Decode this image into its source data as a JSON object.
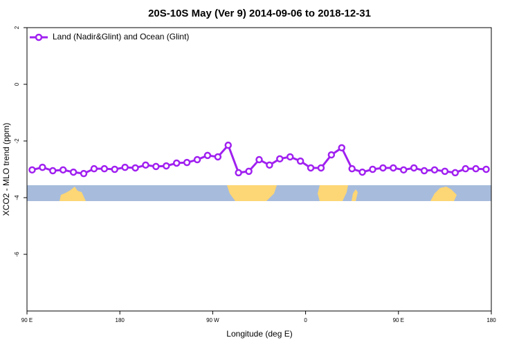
{
  "chart_data": {
    "type": "line",
    "title": "20S-10S May (Ver 9)   2014-09-06 to 2018-12-31",
    "x_label": "Longitude (deg E)",
    "y_label": "XCO2 - MLO trend (ppm)",
    "x": [
      95,
      105,
      115,
      125,
      135,
      145,
      155,
      165,
      175,
      185,
      195,
      205,
      215,
      225,
      235,
      245,
      255,
      265,
      275,
      285,
      295,
      305,
      315,
      325,
      335,
      345,
      355,
      365,
      375,
      385,
      395,
      405,
      415,
      425,
      435,
      445,
      455,
      465,
      475,
      485,
      495,
      505,
      515,
      525,
      535
    ],
    "series": [
      {
        "name": "Land (Nadir&Glint) and Ocean (Glint)",
        "color": "#a020f0",
        "values": [
          -3.02,
          -2.93,
          -3.05,
          -3.02,
          -3.1,
          -3.15,
          -2.98,
          -2.98,
          -3.0,
          -2.93,
          -2.95,
          -2.85,
          -2.9,
          -2.88,
          -2.78,
          -2.76,
          -2.66,
          -2.51,
          -2.56,
          -2.15,
          -3.12,
          -3.07,
          -2.66,
          -2.85,
          -2.63,
          -2.56,
          -2.71,
          -2.95,
          -2.95,
          -2.49,
          -2.24,
          -2.98,
          -3.1,
          -3.0,
          -2.95,
          -2.95,
          -3.02,
          -2.95,
          -3.05,
          -3.02,
          -3.07,
          -3.12,
          -2.98,
          -2.98,
          -3.0
        ]
      }
    ],
    "xlim": [
      90,
      540
    ],
    "xticks": [
      {
        "value": 90,
        "label": "90 E"
      },
      180,
      {
        "value": 270,
        "label": "90 W"
      },
      {
        "value": 360,
        "label": "0"
      },
      {
        "value": 450,
        "label": "90 E"
      },
      {
        "value": 540,
        "label": "180"
      }
    ],
    "ylim": [
      -8,
      2
    ],
    "yticks": [
      2,
      0,
      -2,
      -4,
      -6
    ],
    "legend": "top-left"
  }
}
